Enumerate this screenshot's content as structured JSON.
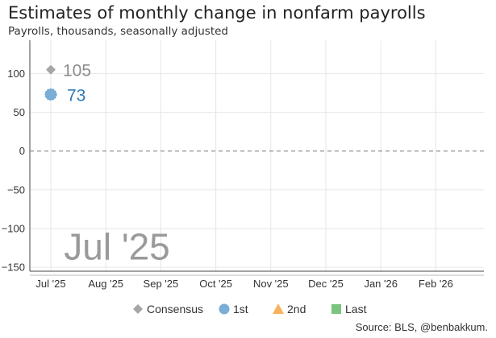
{
  "chart_data": {
    "type": "scatter",
    "title": "Estimates of monthly change in nonfarm payrolls",
    "subtitle": "Payrolls, thousands, seasonally adjusted",
    "source": "Source: BLS, @benbakkum.",
    "watermark": "Jul '25",
    "categories": [
      "Jul '25",
      "Aug '25",
      "Sep '25",
      "Oct '25",
      "Nov '25",
      "Dec '25",
      "Jan '26",
      "Feb '26"
    ],
    "yticks": [
      100,
      50,
      0,
      -50,
      -100,
      -150
    ],
    "ytick_labels": [
      "100",
      "50",
      "0",
      "−50",
      "−100",
      "−150"
    ],
    "ylim": [
      -155,
      143
    ],
    "grid": true,
    "zero_line": "dashed",
    "legend_position": "bottom",
    "series": [
      {
        "name": "Consensus",
        "marker": "diamond",
        "color": "#a6a6a6",
        "points": [
          {
            "x": "Jul '25",
            "y": 105,
            "label": "105"
          }
        ]
      },
      {
        "name": "1st",
        "marker": "circle",
        "color": "#7aaed6",
        "label_color": "#2f7ab5",
        "points": [
          {
            "x": "Jul '25",
            "y": 73,
            "label": "73"
          }
        ]
      },
      {
        "name": "2nd",
        "marker": "triangle",
        "color": "#f9b15c",
        "points": []
      },
      {
        "name": "Last",
        "marker": "square",
        "color": "#7bc47f",
        "points": []
      }
    ]
  }
}
